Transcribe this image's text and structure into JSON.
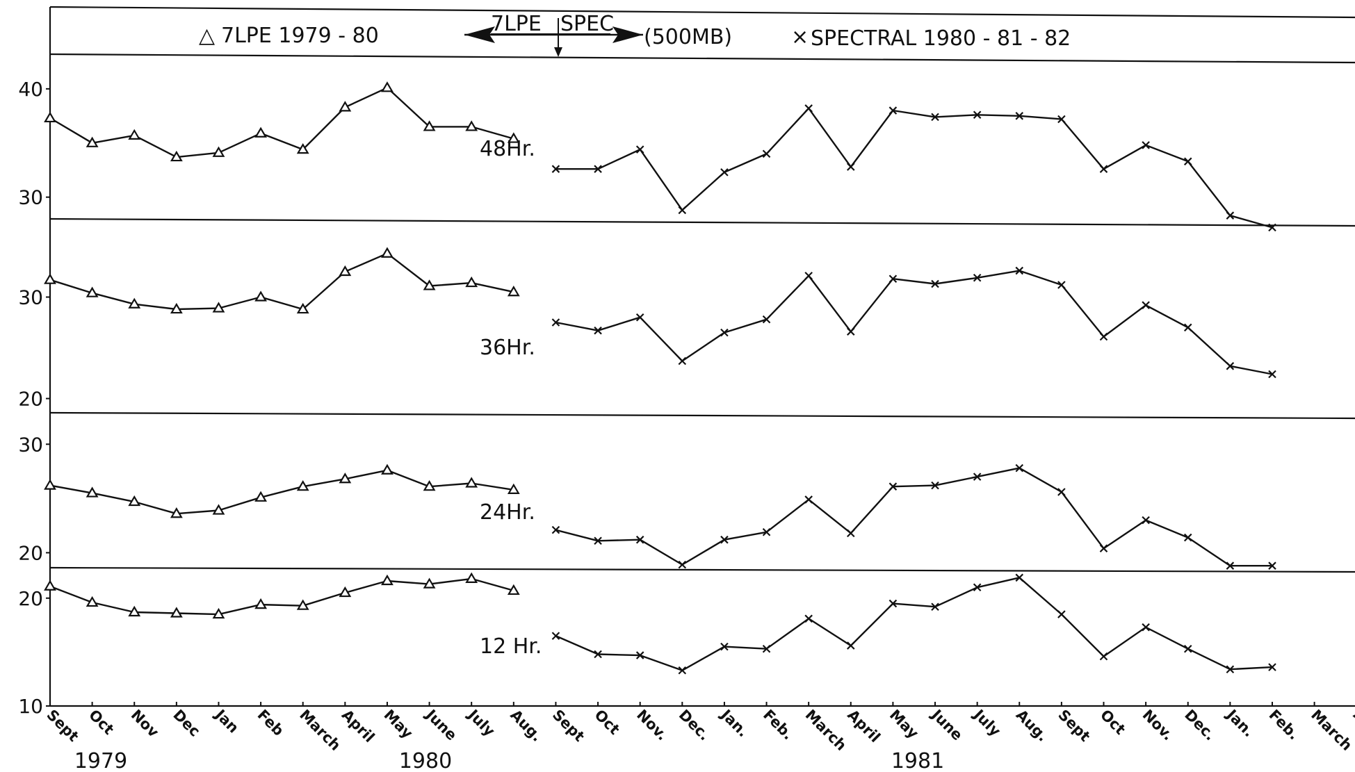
{
  "chart_data": {
    "type": "line",
    "title": "",
    "legend": {
      "triangle_entry": "7LPE  1979 - 80",
      "switch_left": "7LPE",
      "switch_right": "SPEC",
      "level": "(500MB)",
      "cross_entry": "SPECTRAL   1980 - 81 - 82",
      "triangle_symbol": "△",
      "cross_symbol": "×"
    },
    "x": {
      "months": [
        "Sept",
        "Oct",
        "Nov",
        "Dec",
        "Jan",
        "Feb",
        "March",
        "April",
        "May",
        "June",
        "July",
        "Aug.",
        "Sept",
        "Oct",
        "Nov.",
        "Dec.",
        "Jan.",
        "Feb.",
        "March",
        "April",
        "May",
        "June",
        "July",
        "Aug.",
        "Sept",
        "Oct",
        "Nov.",
        "Dec.",
        "Jan.",
        "Feb.",
        "March",
        "Ap"
      ],
      "years": [
        "1979",
        "1980",
        "1981"
      ]
    },
    "panels": [
      {
        "label": "48Hr.",
        "ylim": [
          27.8,
          43.2
        ],
        "ticks": [
          "40",
          "30"
        ],
        "tick_values": [
          40,
          30
        ],
        "series": [
          {
            "marker": "triangle",
            "start_index": 0,
            "values": [
              37.3,
              35.0,
              35.7,
              33.7,
              34.1,
              35.9,
              34.4,
              38.3,
              40.1,
              36.5,
              36.5,
              35.4
            ]
          },
          {
            "marker": "cross",
            "start_index": 12,
            "values": [
              32.6,
              32.6,
              34.4,
              28.8,
              32.3,
              34.0,
              38.2,
              32.8,
              38.0,
              37.4,
              37.6,
              37.5,
              37.2,
              32.6,
              34.8,
              33.3,
              28.3,
              27.2
            ]
          }
        ]
      },
      {
        "label": "36Hr.",
        "ylim": [
          18.6,
          37.5
        ],
        "ticks": [
          "30",
          "20"
        ],
        "tick_values": [
          30,
          20
        ],
        "series": [
          {
            "marker": "triangle",
            "start_index": 0,
            "values": [
              31.7,
              30.4,
              29.3,
              28.8,
              28.9,
              30.0,
              28.8,
              32.5,
              34.3,
              31.1,
              31.4,
              30.5
            ]
          },
          {
            "marker": "cross",
            "start_index": 12,
            "values": [
              27.5,
              26.7,
              28.0,
              23.7,
              26.5,
              27.8,
              32.1,
              26.6,
              31.8,
              31.3,
              31.9,
              32.6,
              31.2,
              26.1,
              29.2,
              27.0,
              23.2,
              22.4
            ]
          }
        ]
      },
      {
        "label": "24Hr.",
        "ylim": [
          18.3,
          32.9
        ],
        "ticks": [
          "30",
          "20"
        ],
        "tick_values": [
          30,
          20
        ],
        "series": [
          {
            "marker": "triangle",
            "start_index": 0,
            "values": [
              26.2,
              25.5,
              24.7,
              23.6,
              23.9,
              25.1,
              26.1,
              26.8,
              27.6,
              26.1,
              26.4,
              25.8
            ]
          },
          {
            "marker": "cross",
            "start_index": 12,
            "values": [
              22.1,
              21.1,
              21.2,
              18.9,
              21.2,
              21.9,
              24.9,
              21.8,
              26.1,
              26.2,
              27.0,
              27.8,
              25.6,
              20.4,
              23.0,
              21.4,
              18.8,
              18.8
            ]
          }
        ]
      },
      {
        "label": "12 Hr.",
        "ylim": [
          10.0,
          22.5
        ],
        "ticks": [
          "20",
          "10"
        ],
        "tick_values": [
          20,
          10
        ],
        "series": [
          {
            "marker": "triangle",
            "start_index": 0,
            "values": [
              21.1,
              19.6,
              18.7,
              18.6,
              18.5,
              19.4,
              19.3,
              20.5,
              21.6,
              21.3,
              21.8,
              20.7
            ]
          },
          {
            "marker": "cross",
            "start_index": 12,
            "values": [
              16.5,
              14.8,
              14.7,
              13.3,
              15.5,
              15.3,
              18.1,
              15.6,
              19.5,
              19.2,
              21.0,
              21.9,
              18.5,
              14.6,
              17.3,
              15.3,
              13.4,
              13.6
            ]
          }
        ]
      }
    ]
  }
}
